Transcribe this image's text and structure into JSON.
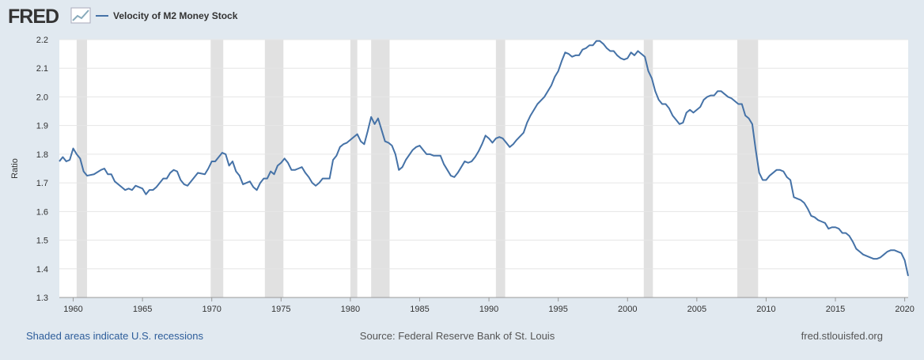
{
  "logo": "FRED",
  "chart_data": {
    "type": "line",
    "legend": "Velocity of M2 Money Stock",
    "y_label": "Ratio",
    "note": "Shaded areas indicate U.S. recessions",
    "source": "Source: Federal Reserve Bank of St. Louis",
    "site": "fred.stlouisfed.org",
    "color": "#4572a7",
    "recession_color": "#e1e1e1",
    "grid": true,
    "xlim": [
      1959,
      2020.25
    ],
    "xticks": [
      1960,
      1965,
      1970,
      1975,
      1980,
      1985,
      1990,
      1995,
      2000,
      2005,
      2010,
      2015,
      2020
    ],
    "ylim": [
      1.3,
      2.2
    ],
    "yticks": [
      1.3,
      1.4,
      1.5,
      1.6,
      1.7,
      1.8,
      1.9,
      {
        "value": 2,
        "label": "2.0"
      },
      2.1,
      2.2
    ],
    "recessions": [
      [
        1960.25,
        1961.0
      ],
      [
        1969.92,
        1970.83
      ],
      [
        1973.83,
        1975.17
      ],
      [
        1980.0,
        1980.5
      ],
      [
        1981.5,
        1982.83
      ],
      [
        1990.5,
        1991.17
      ],
      [
        2001.17,
        2001.83
      ],
      [
        2007.92,
        2009.42
      ]
    ],
    "x": [
      1959.0,
      1959.25,
      1959.5,
      1959.75,
      1960.0,
      1960.25,
      1960.5,
      1960.75,
      1961.0,
      1961.5,
      1962.0,
      1962.25,
      1962.5,
      1962.75,
      1963.0,
      1963.5,
      1963.75,
      1964.0,
      1964.25,
      1964.5,
      1965.0,
      1965.25,
      1965.5,
      1965.75,
      1966.0,
      1966.5,
      1966.75,
      1967.0,
      1967.25,
      1967.5,
      1967.75,
      1968.0,
      1968.25,
      1968.75,
      1969.0,
      1969.5,
      1969.75,
      1970.0,
      1970.25,
      1970.5,
      1970.75,
      1971.0,
      1971.25,
      1971.5,
      1971.75,
      1972.0,
      1972.25,
      1972.75,
      1973.0,
      1973.25,
      1973.5,
      1973.75,
      1974.0,
      1974.25,
      1974.5,
      1974.75,
      1975.0,
      1975.25,
      1975.5,
      1975.75,
      1976.0,
      1976.25,
      1976.5,
      1976.75,
      1977.0,
      1977.25,
      1977.5,
      1977.75,
      1978.0,
      1978.25,
      1978.5,
      1978.75,
      1979.0,
      1979.25,
      1979.5,
      1979.75,
      1980.0,
      1980.5,
      1980.75,
      1981.0,
      1981.25,
      1981.5,
      1981.75,
      1982.0,
      1982.25,
      1982.5,
      1982.75,
      1983.0,
      1983.25,
      1983.5,
      1983.75,
      1984.0,
      1984.5,
      1984.75,
      1985.0,
      1985.25,
      1985.5,
      1985.75,
      1986.0,
      1986.5,
      1986.75,
      1987.0,
      1987.25,
      1987.5,
      1987.75,
      1988.0,
      1988.25,
      1988.5,
      1988.75,
      1989.0,
      1989.25,
      1989.5,
      1989.75,
      1990.0,
      1990.25,
      1990.5,
      1990.75,
      1991.0,
      1991.25,
      1991.5,
      1991.75,
      1992.0,
      1992.5,
      1992.75,
      1993.0,
      1993.5,
      1994.0,
      1994.5,
      1994.75,
      1995.0,
      1995.25,
      1995.5,
      1995.75,
      1996.0,
      1996.25,
      1996.5,
      1996.75,
      1997.0,
      1997.25,
      1997.5,
      1997.75,
      1998.0,
      1998.25,
      1998.5,
      1998.75,
      1999.0,
      1999.25,
      1999.5,
      1999.75,
      2000.0,
      2000.25,
      2000.5,
      2000.75,
      2001.0,
      2001.25,
      2001.5,
      2001.75,
      2002.0,
      2002.25,
      2002.5,
      2002.75,
      2003.0,
      2003.25,
      2003.5,
      2003.75,
      2004.0,
      2004.25,
      2004.5,
      2004.75,
      2005.0,
      2005.25,
      2005.5,
      2005.75,
      2006.0,
      2006.25,
      2006.5,
      2006.75,
      2007.0,
      2007.25,
      2007.5,
      2007.75,
      2008.0,
      2008.25,
      2008.5,
      2008.75,
      2009.0,
      2009.25,
      2009.5,
      2009.75,
      2010.0,
      2010.25,
      2010.5,
      2010.75,
      2011.0,
      2011.25,
      2011.5,
      2011.75,
      2012.0,
      2012.25,
      2012.5,
      2012.75,
      2013.0,
      2013.25,
      2013.5,
      2013.75,
      2014.0,
      2014.25,
      2014.5,
      2014.75,
      2015.0,
      2015.25,
      2015.5,
      2015.75,
      2016.0,
      2016.25,
      2016.5,
      2016.75,
      2017.0,
      2017.5,
      2017.75,
      2018.0,
      2018.25,
      2018.5,
      2018.75,
      2019.0,
      2019.25,
      2019.5,
      2019.75,
      2020.0,
      2020.25
    ],
    "values": [
      1.775,
      1.79,
      1.775,
      1.78,
      1.82,
      1.8,
      1.785,
      1.74,
      1.725,
      1.73,
      1.745,
      1.75,
      1.73,
      1.73,
      1.705,
      1.685,
      1.675,
      1.68,
      1.675,
      1.69,
      1.68,
      1.66,
      1.675,
      1.675,
      1.685,
      1.715,
      1.715,
      1.735,
      1.745,
      1.74,
      1.71,
      1.695,
      1.69,
      1.72,
      1.735,
      1.73,
      1.75,
      1.775,
      1.775,
      1.79,
      1.805,
      1.8,
      1.76,
      1.775,
      1.74,
      1.725,
      1.695,
      1.705,
      1.685,
      1.675,
      1.7,
      1.715,
      1.715,
      1.74,
      1.73,
      1.76,
      1.77,
      1.785,
      1.77,
      1.745,
      1.745,
      1.75,
      1.755,
      1.735,
      1.72,
      1.7,
      1.69,
      1.7,
      1.715,
      1.715,
      1.715,
      1.78,
      1.795,
      1.825,
      1.835,
      1.84,
      1.85,
      1.87,
      1.845,
      1.835,
      1.88,
      1.93,
      1.905,
      1.925,
      1.885,
      1.845,
      1.84,
      1.83,
      1.8,
      1.745,
      1.755,
      1.78,
      1.815,
      1.825,
      1.83,
      1.815,
      1.8,
      1.8,
      1.795,
      1.795,
      1.765,
      1.745,
      1.725,
      1.72,
      1.735,
      1.755,
      1.775,
      1.77,
      1.775,
      1.79,
      1.81,
      1.835,
      1.865,
      1.855,
      1.84,
      1.855,
      1.86,
      1.855,
      1.84,
      1.825,
      1.835,
      1.85,
      1.875,
      1.91,
      1.935,
      1.975,
      2.0,
      2.04,
      2.07,
      2.09,
      2.125,
      2.155,
      2.15,
      2.14,
      2.145,
      2.145,
      2.165,
      2.17,
      2.18,
      2.18,
      2.195,
      2.195,
      2.185,
      2.17,
      2.16,
      2.16,
      2.145,
      2.135,
      2.13,
      2.135,
      2.155,
      2.145,
      2.16,
      2.15,
      2.14,
      2.09,
      2.065,
      2.02,
      1.99,
      1.975,
      1.975,
      1.96,
      1.935,
      1.92,
      1.905,
      1.91,
      1.945,
      1.955,
      1.945,
      1.955,
      1.965,
      1.99,
      2.0,
      2.005,
      2.005,
      2.02,
      2.02,
      2.01,
      2.0,
      1.995,
      1.985,
      1.975,
      1.975,
      1.935,
      1.925,
      1.905,
      1.815,
      1.735,
      1.71,
      1.71,
      1.725,
      1.735,
      1.745,
      1.745,
      1.74,
      1.72,
      1.71,
      1.65,
      1.645,
      1.64,
      1.63,
      1.61,
      1.585,
      1.58,
      1.57,
      1.565,
      1.56,
      1.54,
      1.545,
      1.545,
      1.54,
      1.525,
      1.525,
      1.515,
      1.495,
      1.47,
      1.46,
      1.45,
      1.44,
      1.435,
      1.435,
      1.44,
      1.45,
      1.46,
      1.465,
      1.465,
      1.46,
      1.455,
      1.43,
      1.375
    ]
  }
}
